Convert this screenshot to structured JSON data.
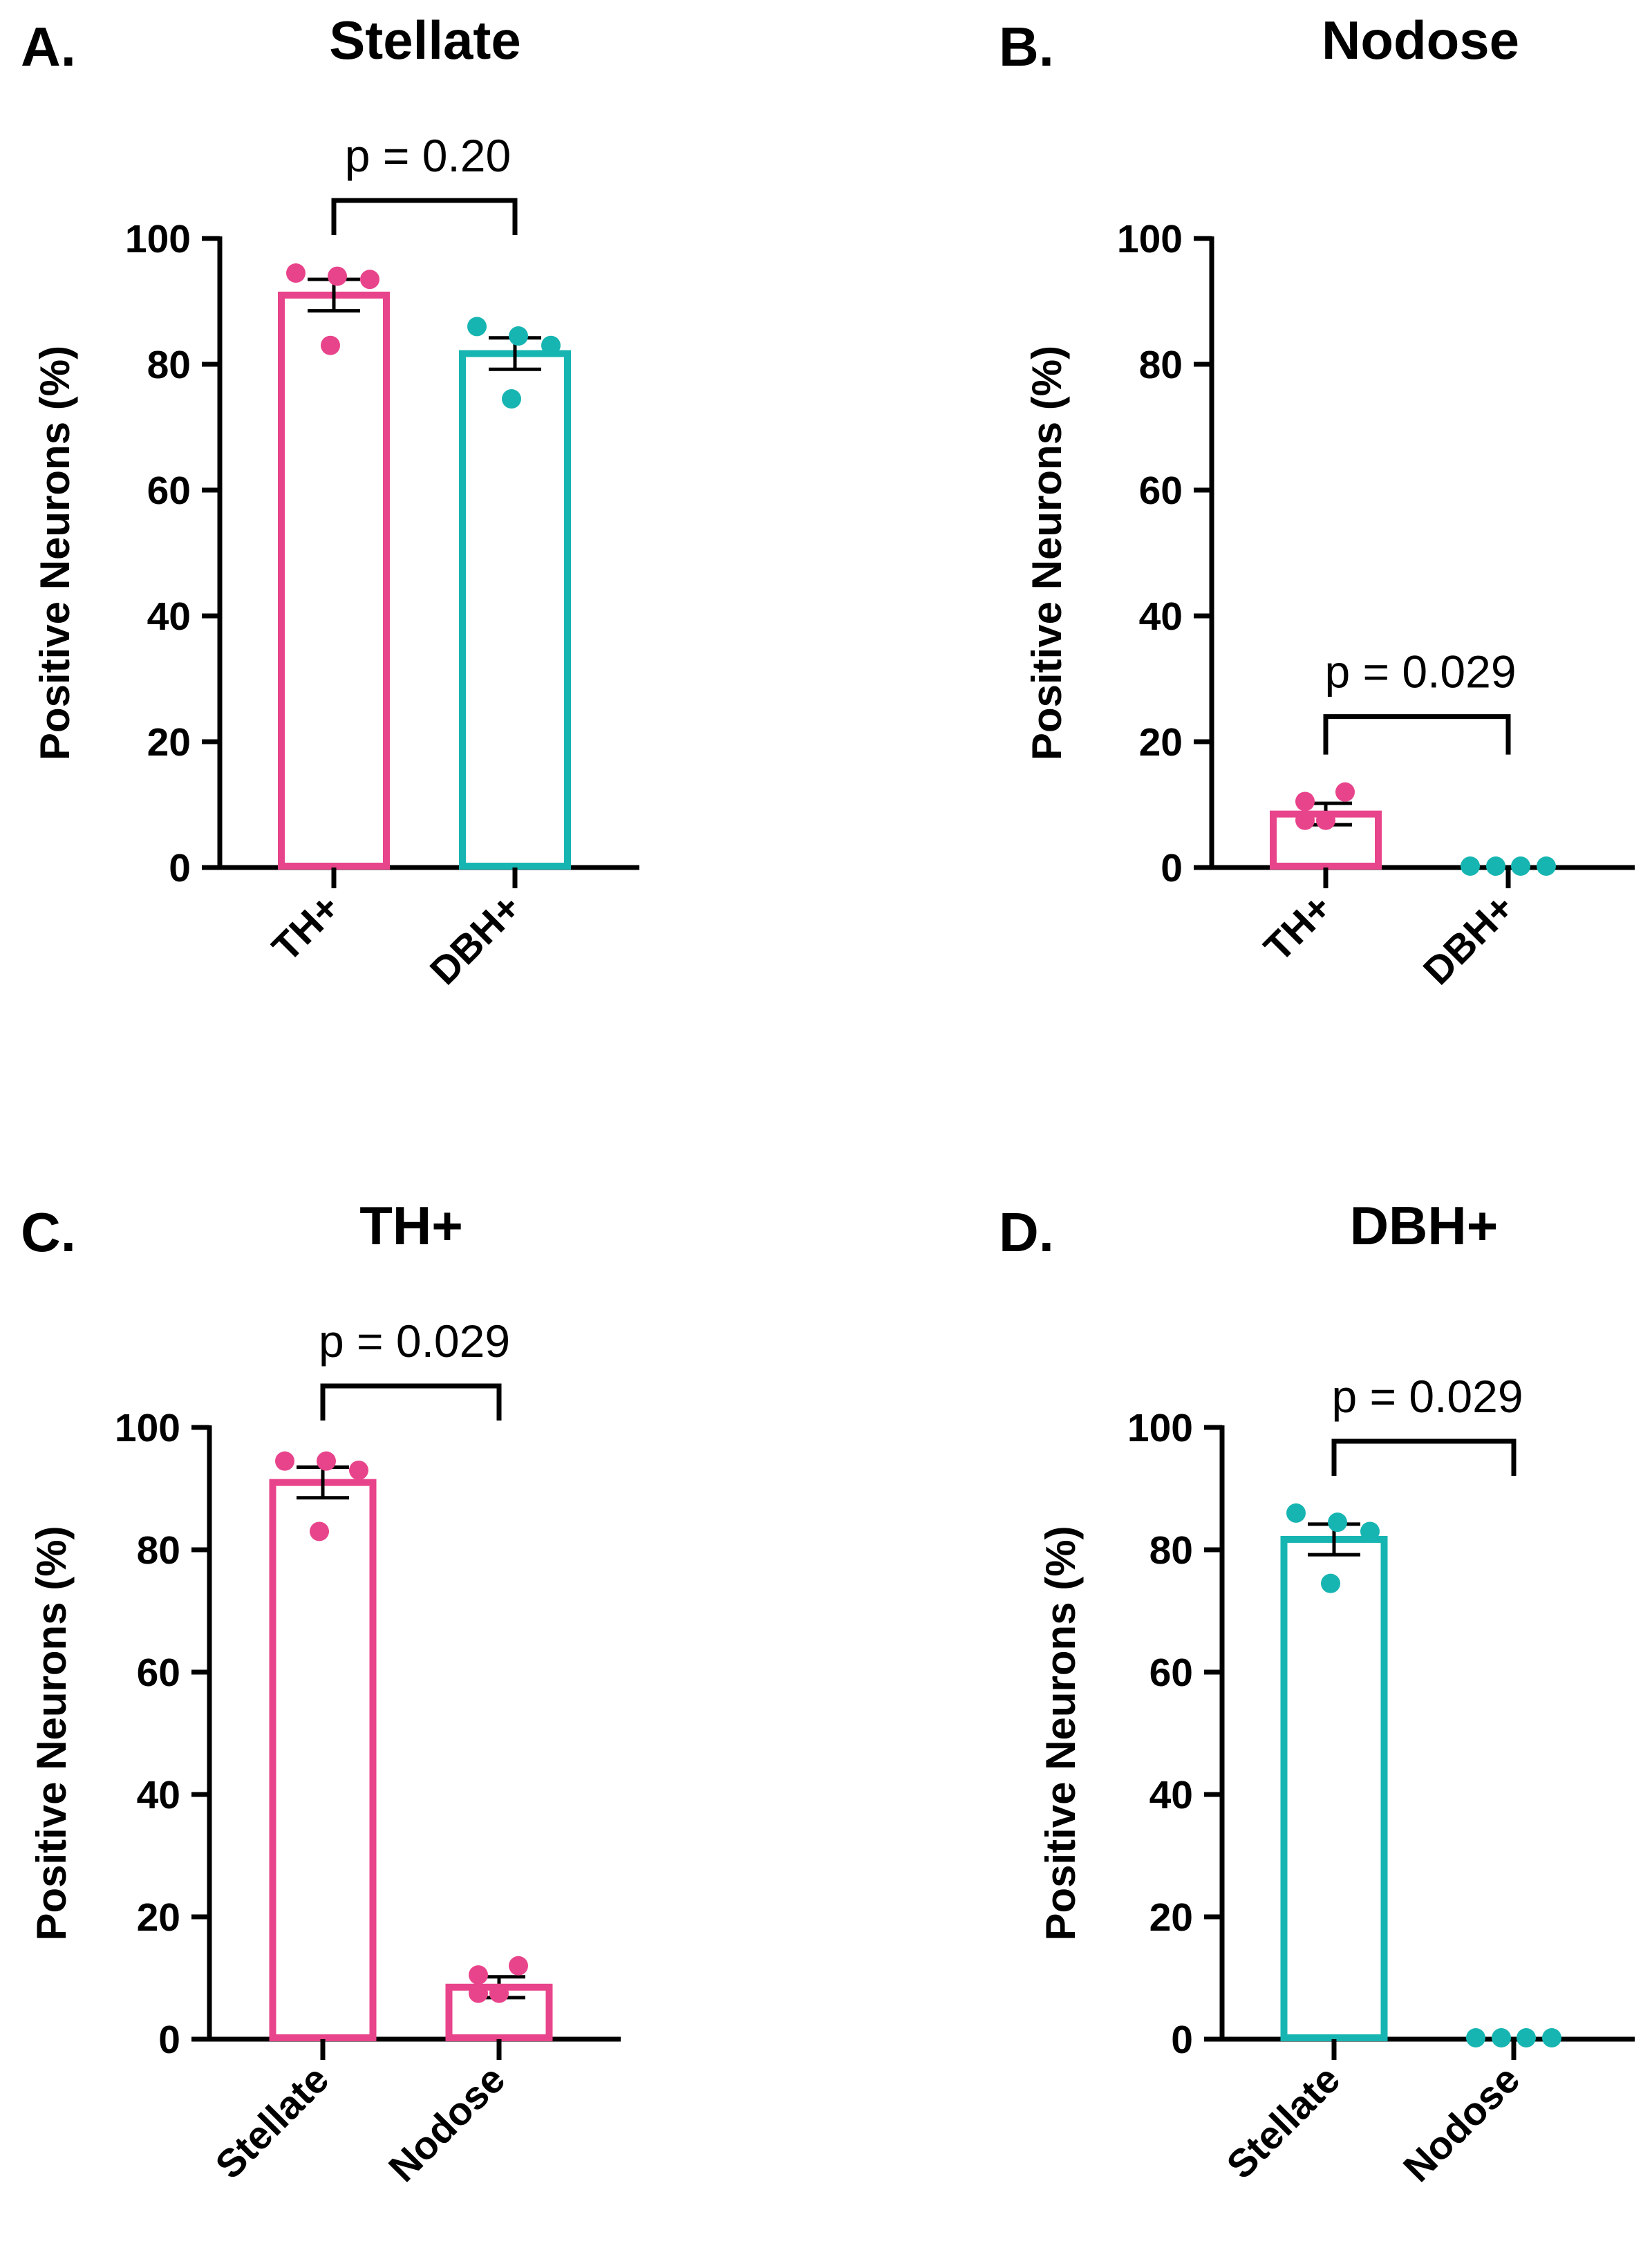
{
  "figure": {
    "colors": {
      "pink": "#E8448B",
      "teal": "#17B5B2",
      "axis": "#000000"
    }
  },
  "chart_data": [
    {
      "panel": "A.",
      "type": "bar",
      "title": "Stellate",
      "ylabel": "Positive Neurons (%)",
      "xlabel": "",
      "ylim": [
        0,
        100
      ],
      "yticks": [
        "0",
        "20",
        "40",
        "60",
        "80",
        "100"
      ],
      "categories": [
        "TH+",
        "DBH+"
      ],
      "values": [
        91,
        81.7
      ],
      "sem": [
        2.5,
        2.5
      ],
      "colors": [
        "pink",
        "teal"
      ],
      "points": [
        [
          94.5,
          93.5,
          94,
          83
        ],
        [
          86,
          83,
          84.5,
          74.5
        ]
      ],
      "pvalue": "p = 0.20"
    },
    {
      "panel": "B.",
      "type": "bar",
      "title": "Nodose",
      "ylabel": "Positive Neurons (%)",
      "xlabel": "",
      "ylim": [
        0,
        100
      ],
      "yticks": [
        "0",
        "20",
        "40",
        "60",
        "80",
        "100"
      ],
      "categories": [
        "TH+",
        "DBH+"
      ],
      "values": [
        8.5,
        0.2
      ],
      "sem": [
        1.7,
        0.2
      ],
      "colors": [
        "pink",
        "teal"
      ],
      "points": [
        [
          10.5,
          12,
          7.5,
          7.5
        ],
        [
          0.2,
          0.2,
          0.2,
          0.2
        ]
      ],
      "pvalue": "p = 0.029"
    },
    {
      "panel": "C.",
      "type": "bar",
      "title": "TH+",
      "ylabel": "Positive Neurons (%)",
      "xlabel": "",
      "ylim": [
        0,
        100
      ],
      "yticks": [
        "0",
        "20",
        "40",
        "60",
        "80",
        "100"
      ],
      "categories": [
        "Stellate",
        "Nodose"
      ],
      "values": [
        91,
        8.5
      ],
      "sem": [
        2.5,
        1.7
      ],
      "colors": [
        "pink",
        "pink"
      ],
      "points": [
        [
          94.5,
          93,
          94.5,
          83
        ],
        [
          10.5,
          12,
          7.5,
          7.5
        ]
      ],
      "pvalue": "p = 0.029"
    },
    {
      "panel": "D.",
      "type": "bar",
      "title": "DBH+",
      "ylabel": "Positive Neurons (%)",
      "xlabel": "",
      "ylim": [
        0,
        100
      ],
      "yticks": [
        "0",
        "20",
        "40",
        "60",
        "80",
        "100"
      ],
      "categories": [
        "Stellate",
        "Nodose"
      ],
      "values": [
        81.7,
        0.2
      ],
      "sem": [
        2.5,
        0.2
      ],
      "colors": [
        "teal",
        "teal"
      ],
      "points": [
        [
          86,
          83,
          84.5,
          74.5
        ],
        [
          0.2,
          0.2,
          0.2,
          0.2
        ]
      ],
      "pvalue": "p = 0.029"
    }
  ]
}
